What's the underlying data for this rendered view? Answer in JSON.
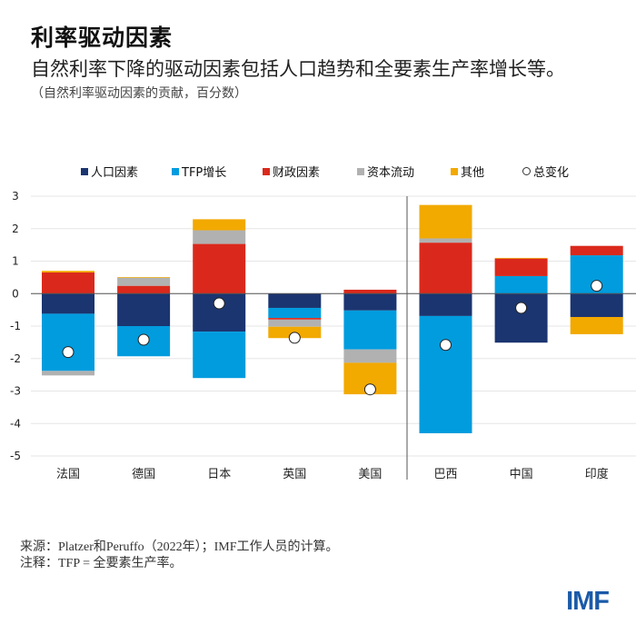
{
  "title": "利率驱动因素",
  "subtitle": "自然利率下降的驱动因素包括人口趋势和全要素生产率增长等。",
  "unit_note": "（自然利率驱动因素的贡献，百分数）",
  "footer": {
    "source": "来源：Platzer和Peruffo（2022年）；IMF工作人员的计算。",
    "note": "注释：TFP = 全要素生产率。"
  },
  "logo": "IMF",
  "chart_data": {
    "type": "bar",
    "stacked": true,
    "categories": [
      "法国",
      "德国",
      "日本",
      "英国",
      "美国",
      "巴西",
      "中国",
      "印度"
    ],
    "ylim": [
      -5,
      3
    ],
    "yticks": [
      "3",
      "2",
      "1",
      "0",
      "-1",
      "-2",
      "-3",
      "-4",
      "-5"
    ],
    "grid": true,
    "legend_placement": "top",
    "series": [
      {
        "name": "人口因素",
        "color": "#1b3570",
        "values": [
          -0.62,
          -1.0,
          -1.17,
          -0.44,
          -0.52,
          -0.69,
          -1.51,
          -0.72
        ]
      },
      {
        "name": "TFP增长",
        "color": "#009cde",
        "values": [
          -1.76,
          -0.93,
          -1.43,
          -0.31,
          -1.2,
          -3.61,
          0.54,
          1.18
        ]
      },
      {
        "name": "财政因素",
        "color": "#da291c",
        "values": [
          0.65,
          0.24,
          1.53,
          -0.05,
          0.12,
          1.57,
          0.54,
          0.29
        ]
      },
      {
        "name": "资本流动",
        "color": "#b1b1b1",
        "values": [
          -0.14,
          0.25,
          0.42,
          -0.22,
          -0.41,
          0.13,
          0,
          0
        ]
      },
      {
        "name": "其他",
        "color": "#f2a900",
        "values": [
          0.05,
          0.02,
          0.34,
          -0.35,
          -0.97,
          1.03,
          0.02,
          -0.53
        ]
      }
    ],
    "total": {
      "name": "总变化",
      "marker": "white-circle",
      "values": [
        -1.8,
        -1.42,
        -0.3,
        -1.36,
        -2.95,
        -1.58,
        -0.44,
        0.24
      ]
    }
  }
}
